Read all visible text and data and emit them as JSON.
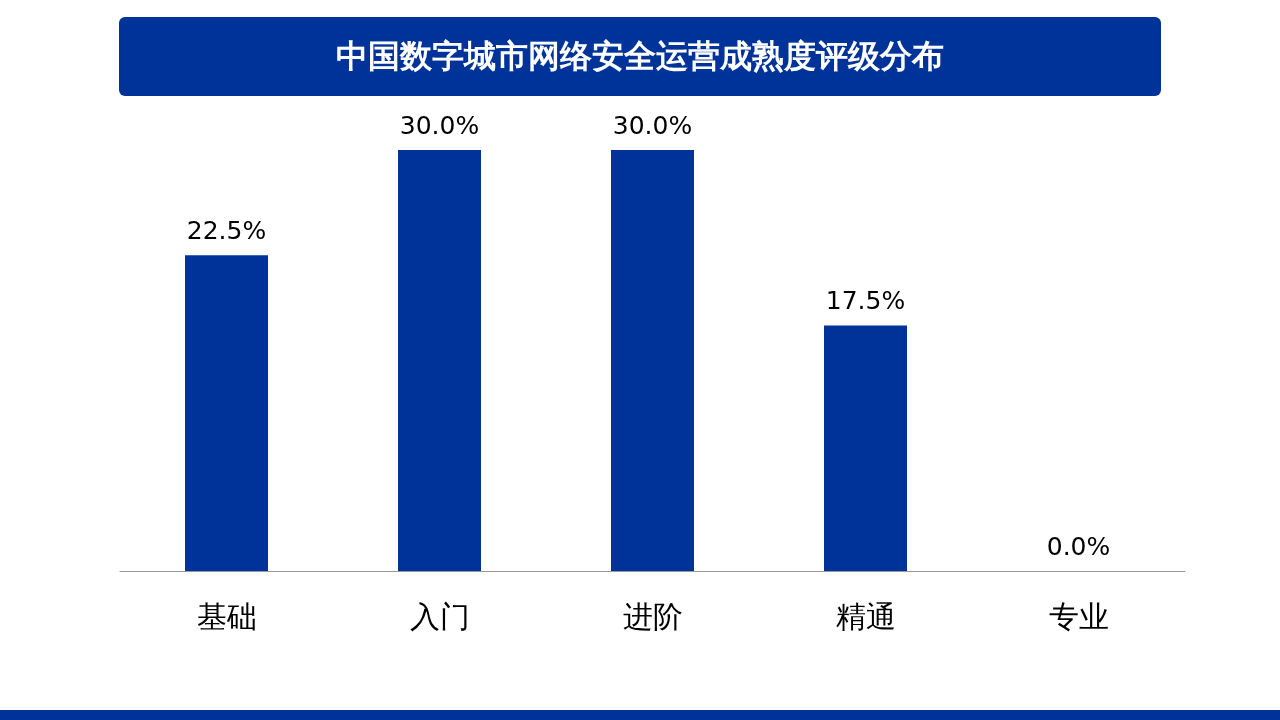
{
  "chart_data": {
    "type": "bar",
    "title": "中国数字城市网络安全运营成熟度评级分布",
    "categories": [
      "基础",
      "入门",
      "进阶",
      "精通",
      "专业"
    ],
    "values": [
      22.5,
      30.0,
      30.0,
      17.5,
      0.0
    ],
    "value_labels": [
      "22.5%",
      "30.0%",
      "30.0%",
      "17.5%",
      "0.0%"
    ],
    "color": "#003399"
  }
}
